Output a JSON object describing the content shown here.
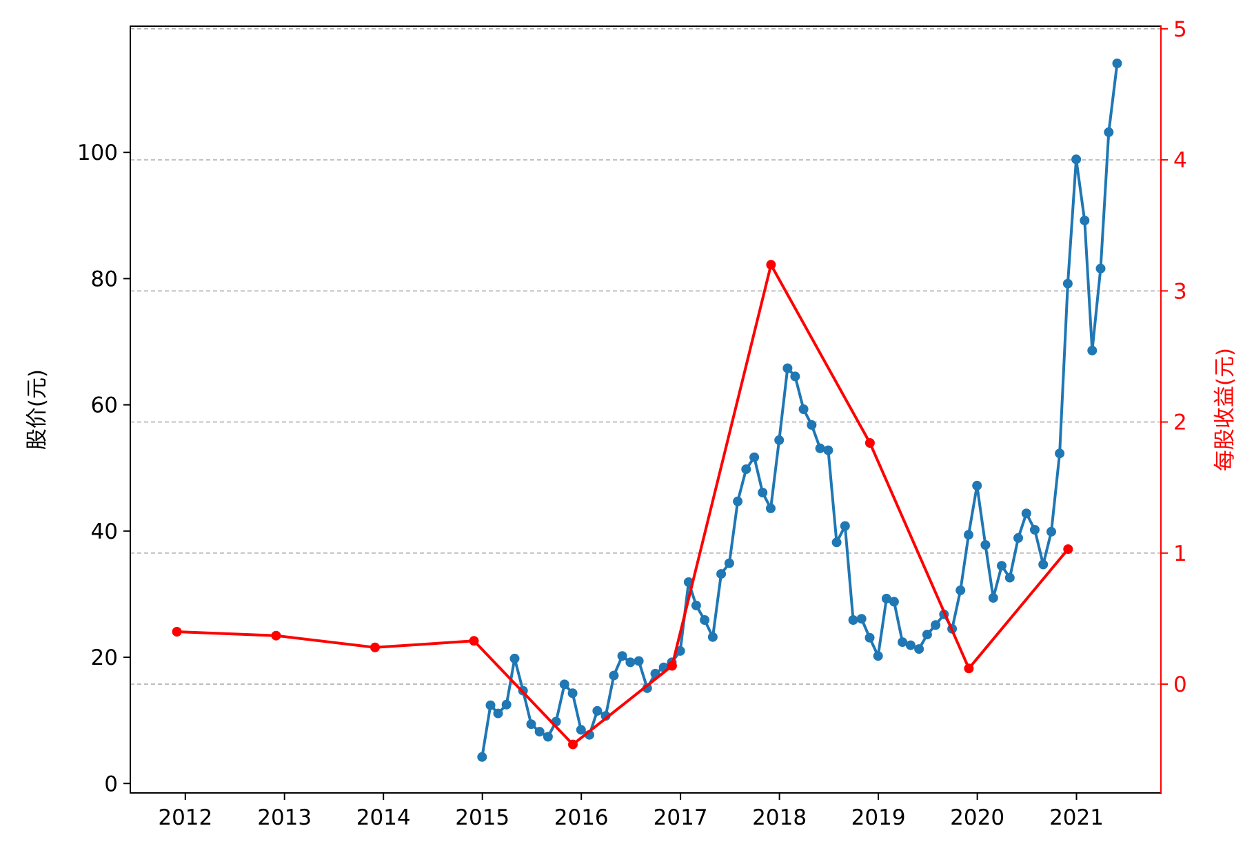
{
  "chart_data": {
    "type": "line",
    "title": "",
    "xlabel": "",
    "ylabel": "股价(元)",
    "ylabel_right": "每股收益(元)",
    "x_ticks": [
      "2012",
      "2013",
      "2014",
      "2015",
      "2016",
      "2017",
      "2018",
      "2019",
      "2020",
      "2021"
    ],
    "xlim": [
      "2011-06-10",
      "2021-11-20"
    ],
    "y_ticks": [
      0,
      20,
      40,
      60,
      80,
      100
    ],
    "ylim": [
      -1.5,
      120
    ],
    "y2_ticks": [
      0,
      1,
      2,
      3,
      4,
      5
    ],
    "y2lim": [
      -0.83,
      5.02
    ],
    "grid": "horizontal dashed gridlines aligned with right-axis ticks",
    "colors": {
      "price": "#1f77b4",
      "eps": "#ff0000",
      "grid": "#b0b0b0"
    },
    "series": [
      {
        "axis": "left",
        "color": "#1f77b4",
        "points": [
          [
            "2014-12-31",
            4.2
          ],
          [
            "2015-01-31",
            12.4
          ],
          [
            "2015-02-28",
            11.1
          ],
          [
            "2015-03-31",
            12.5
          ],
          [
            "2015-04-30",
            19.8
          ],
          [
            "2015-05-31",
            14.7
          ],
          [
            "2015-06-30",
            9.4
          ],
          [
            "2015-07-31",
            8.2
          ],
          [
            "2015-08-31",
            7.4
          ],
          [
            "2015-09-30",
            9.8
          ],
          [
            "2015-10-31",
            15.7
          ],
          [
            "2015-11-30",
            14.3
          ],
          [
            "2015-12-31",
            8.5
          ],
          [
            "2016-01-31",
            7.7
          ],
          [
            "2016-02-29",
            11.5
          ],
          [
            "2016-03-31",
            10.7
          ],
          [
            "2016-04-30",
            17.1
          ],
          [
            "2016-05-31",
            20.2
          ],
          [
            "2016-06-30",
            19.2
          ],
          [
            "2016-07-31",
            19.4
          ],
          [
            "2016-08-31",
            15.1
          ],
          [
            "2016-09-30",
            17.4
          ],
          [
            "2016-10-31",
            18.4
          ],
          [
            "2016-11-30",
            19.2
          ],
          [
            "2016-12-31",
            21.0
          ],
          [
            "2017-01-31",
            31.9
          ],
          [
            "2017-02-28",
            28.2
          ],
          [
            "2017-03-31",
            25.9
          ],
          [
            "2017-04-30",
            23.2
          ],
          [
            "2017-05-31",
            33.2
          ],
          [
            "2017-06-30",
            34.9
          ],
          [
            "2017-07-31",
            44.7
          ],
          [
            "2017-08-31",
            49.8
          ],
          [
            "2017-09-30",
            51.7
          ],
          [
            "2017-10-31",
            46.1
          ],
          [
            "2017-11-30",
            43.6
          ],
          [
            "2017-12-31",
            54.4
          ],
          [
            "2018-01-31",
            65.8
          ],
          [
            "2018-02-28",
            64.5
          ],
          [
            "2018-03-31",
            59.3
          ],
          [
            "2018-04-30",
            56.8
          ],
          [
            "2018-05-31",
            53.1
          ],
          [
            "2018-06-30",
            52.8
          ],
          [
            "2018-07-31",
            38.2
          ],
          [
            "2018-08-31",
            40.8
          ],
          [
            "2018-09-30",
            25.9
          ],
          [
            "2018-10-31",
            26.1
          ],
          [
            "2018-11-30",
            23.1
          ],
          [
            "2018-12-31",
            20.2
          ],
          [
            "2019-01-31",
            29.3
          ],
          [
            "2019-02-28",
            28.8
          ],
          [
            "2019-03-31",
            22.4
          ],
          [
            "2019-04-30",
            21.9
          ],
          [
            "2019-05-31",
            21.3
          ],
          [
            "2019-06-30",
            23.6
          ],
          [
            "2019-07-31",
            25.1
          ],
          [
            "2019-08-31",
            26.8
          ],
          [
            "2019-09-30",
            24.5
          ],
          [
            "2019-10-31",
            30.6
          ],
          [
            "2019-11-30",
            39.4
          ],
          [
            "2019-12-31",
            47.2
          ],
          [
            "2020-01-31",
            37.8
          ],
          [
            "2020-02-29",
            29.4
          ],
          [
            "2020-03-31",
            34.5
          ],
          [
            "2020-04-30",
            32.6
          ],
          [
            "2020-05-31",
            38.9
          ],
          [
            "2020-06-30",
            42.8
          ],
          [
            "2020-07-31",
            40.2
          ],
          [
            "2020-08-31",
            34.7
          ],
          [
            "2020-09-30",
            39.9
          ],
          [
            "2020-10-31",
            52.3
          ],
          [
            "2020-11-30",
            79.2
          ],
          [
            "2020-12-31",
            98.9
          ],
          [
            "2021-01-31",
            89.2
          ],
          [
            "2021-02-28",
            68.6
          ],
          [
            "2021-03-31",
            81.6
          ],
          [
            "2021-04-30",
            103.2
          ],
          [
            "2021-05-31",
            114.1
          ]
        ]
      },
      {
        "axis": "right",
        "color": "#ff0000",
        "points": [
          [
            "2011-12-01",
            0.4
          ],
          [
            "2012-12-01",
            0.37
          ],
          [
            "2013-12-01",
            0.28
          ],
          [
            "2014-12-01",
            0.33
          ],
          [
            "2015-12-01",
            -0.46
          ],
          [
            "2016-12-01",
            0.14
          ],
          [
            "2017-12-01",
            3.2
          ],
          [
            "2018-12-01",
            1.84
          ],
          [
            "2019-12-01",
            0.12
          ],
          [
            "2020-12-01",
            1.03
          ]
        ]
      }
    ]
  }
}
